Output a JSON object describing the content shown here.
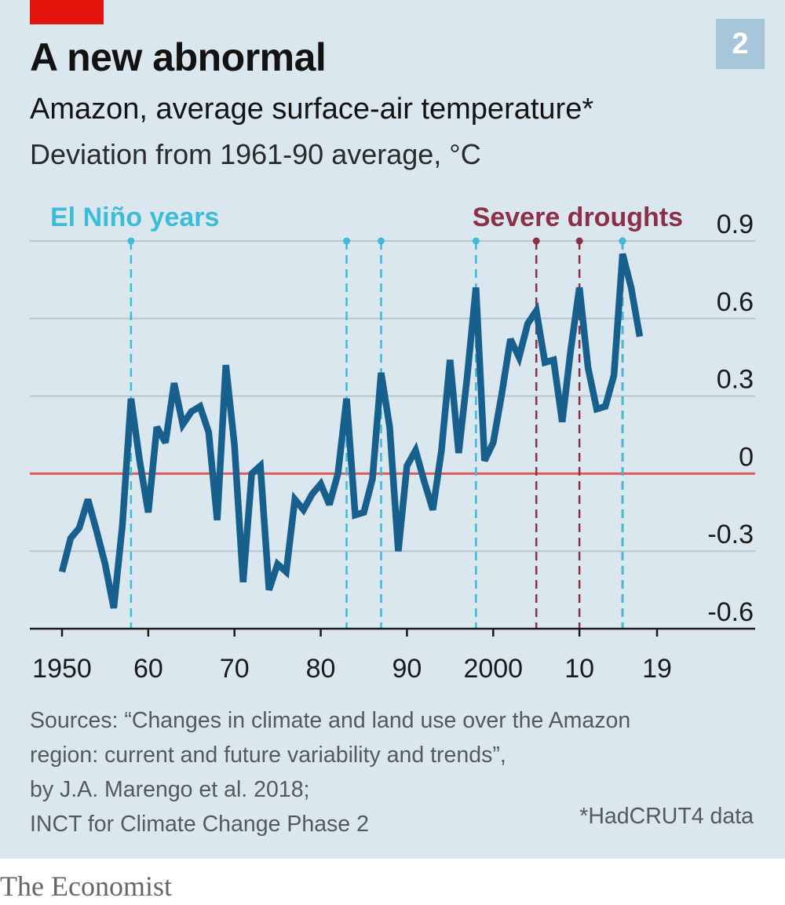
{
  "header": {
    "title": "A new abnormal",
    "subtitle": "Amazon, average surface-air temperature*",
    "unit_line": "Deviation from 1961-90 average, °C",
    "chart_number": "2"
  },
  "footer": {
    "sources": [
      "Sources: “Changes in climate and land use over the Amazon",
      "region: current and future variability and trends”,",
      "by J.A. Marengo et al. 2018;",
      "INCT for Climate Change Phase 2"
    ],
    "note": "*HadCRUT4 data",
    "brand": "The Economist"
  },
  "colors": {
    "background": "#dbe7ef",
    "line": "#17608e",
    "zero_line": "#e05a5a",
    "gridline": "#b7c6cf",
    "el_nino": "#3dbcd8",
    "drought": "#8d2f46",
    "accent": "#e3120b"
  },
  "chart_data": {
    "type": "line",
    "title": "A new abnormal",
    "subtitle": "Amazon, average surface-air temperature*",
    "ylabel": "Deviation from 1961-90 average, °C",
    "ylim": [
      -0.6,
      0.9
    ],
    "yticks": [
      0.9,
      0.6,
      0.3,
      0,
      -0.3,
      -0.6
    ],
    "ytick_labels": [
      "0.9",
      "0.6",
      "0.3",
      "0",
      "-0.3",
      "-0.6"
    ],
    "xlim": [
      1950,
      2019
    ],
    "xticks": [
      1950,
      1960,
      1970,
      1980,
      1990,
      2000,
      2010,
      2019
    ],
    "xtick_labels": [
      "1950",
      "60",
      "70",
      "80",
      "90",
      "2000",
      "10",
      "19"
    ],
    "grid": true,
    "reference_line": 0,
    "series": [
      {
        "x": [
          1950,
          1951,
          1952,
          1953,
          1954,
          1955,
          1956,
          1957,
          1958,
          1959,
          1960,
          1961,
          1962,
          1963,
          1964,
          1965,
          1966,
          1967,
          1968,
          1969,
          1970,
          1971,
          1972,
          1973,
          1974,
          1975,
          1976,
          1977,
          1978,
          1979,
          1980,
          1981,
          1982,
          1983,
          1984,
          1985,
          1986,
          1987,
          1988,
          1989,
          1990,
          1991,
          1992,
          1993,
          1994,
          1995,
          1996,
          1997,
          1998,
          1999,
          2000,
          2001,
          2002,
          2003,
          2004,
          2005,
          2006,
          2007,
          2008,
          2009,
          2010,
          2011,
          2012,
          2013,
          2014,
          2015,
          2016,
          2017
        ],
        "values": [
          -0.38,
          -0.25,
          -0.21,
          -0.1,
          -0.22,
          -0.35,
          -0.52,
          -0.2,
          0.29,
          0.05,
          -0.15,
          0.18,
          0.12,
          0.35,
          0.19,
          0.24,
          0.26,
          0.16,
          -0.18,
          0.42,
          0.11,
          -0.42,
          0.0,
          0.03,
          -0.45,
          -0.35,
          -0.38,
          -0.1,
          -0.14,
          -0.08,
          -0.04,
          -0.12,
          0.0,
          0.29,
          -0.16,
          -0.15,
          -0.02,
          0.39,
          0.18,
          -0.3,
          0.03,
          0.09,
          -0.03,
          -0.14,
          0.09,
          0.44,
          0.08,
          0.38,
          0.72,
          0.05,
          0.12,
          0.31,
          0.52,
          0.45,
          0.58,
          0.63,
          0.43,
          0.44,
          0.2,
          0.48,
          0.72,
          0.41,
          0.25,
          0.26,
          0.38,
          0.85,
          0.72,
          0.53
        ]
      }
    ],
    "annotations": {
      "el_nino": {
        "label": "El Niño years",
        "years": [
          1958,
          1983,
          1987,
          1998,
          2015
        ]
      },
      "droughts": {
        "label": "Severe droughts",
        "years": [
          2005,
          2010,
          2015
        ]
      }
    }
  }
}
